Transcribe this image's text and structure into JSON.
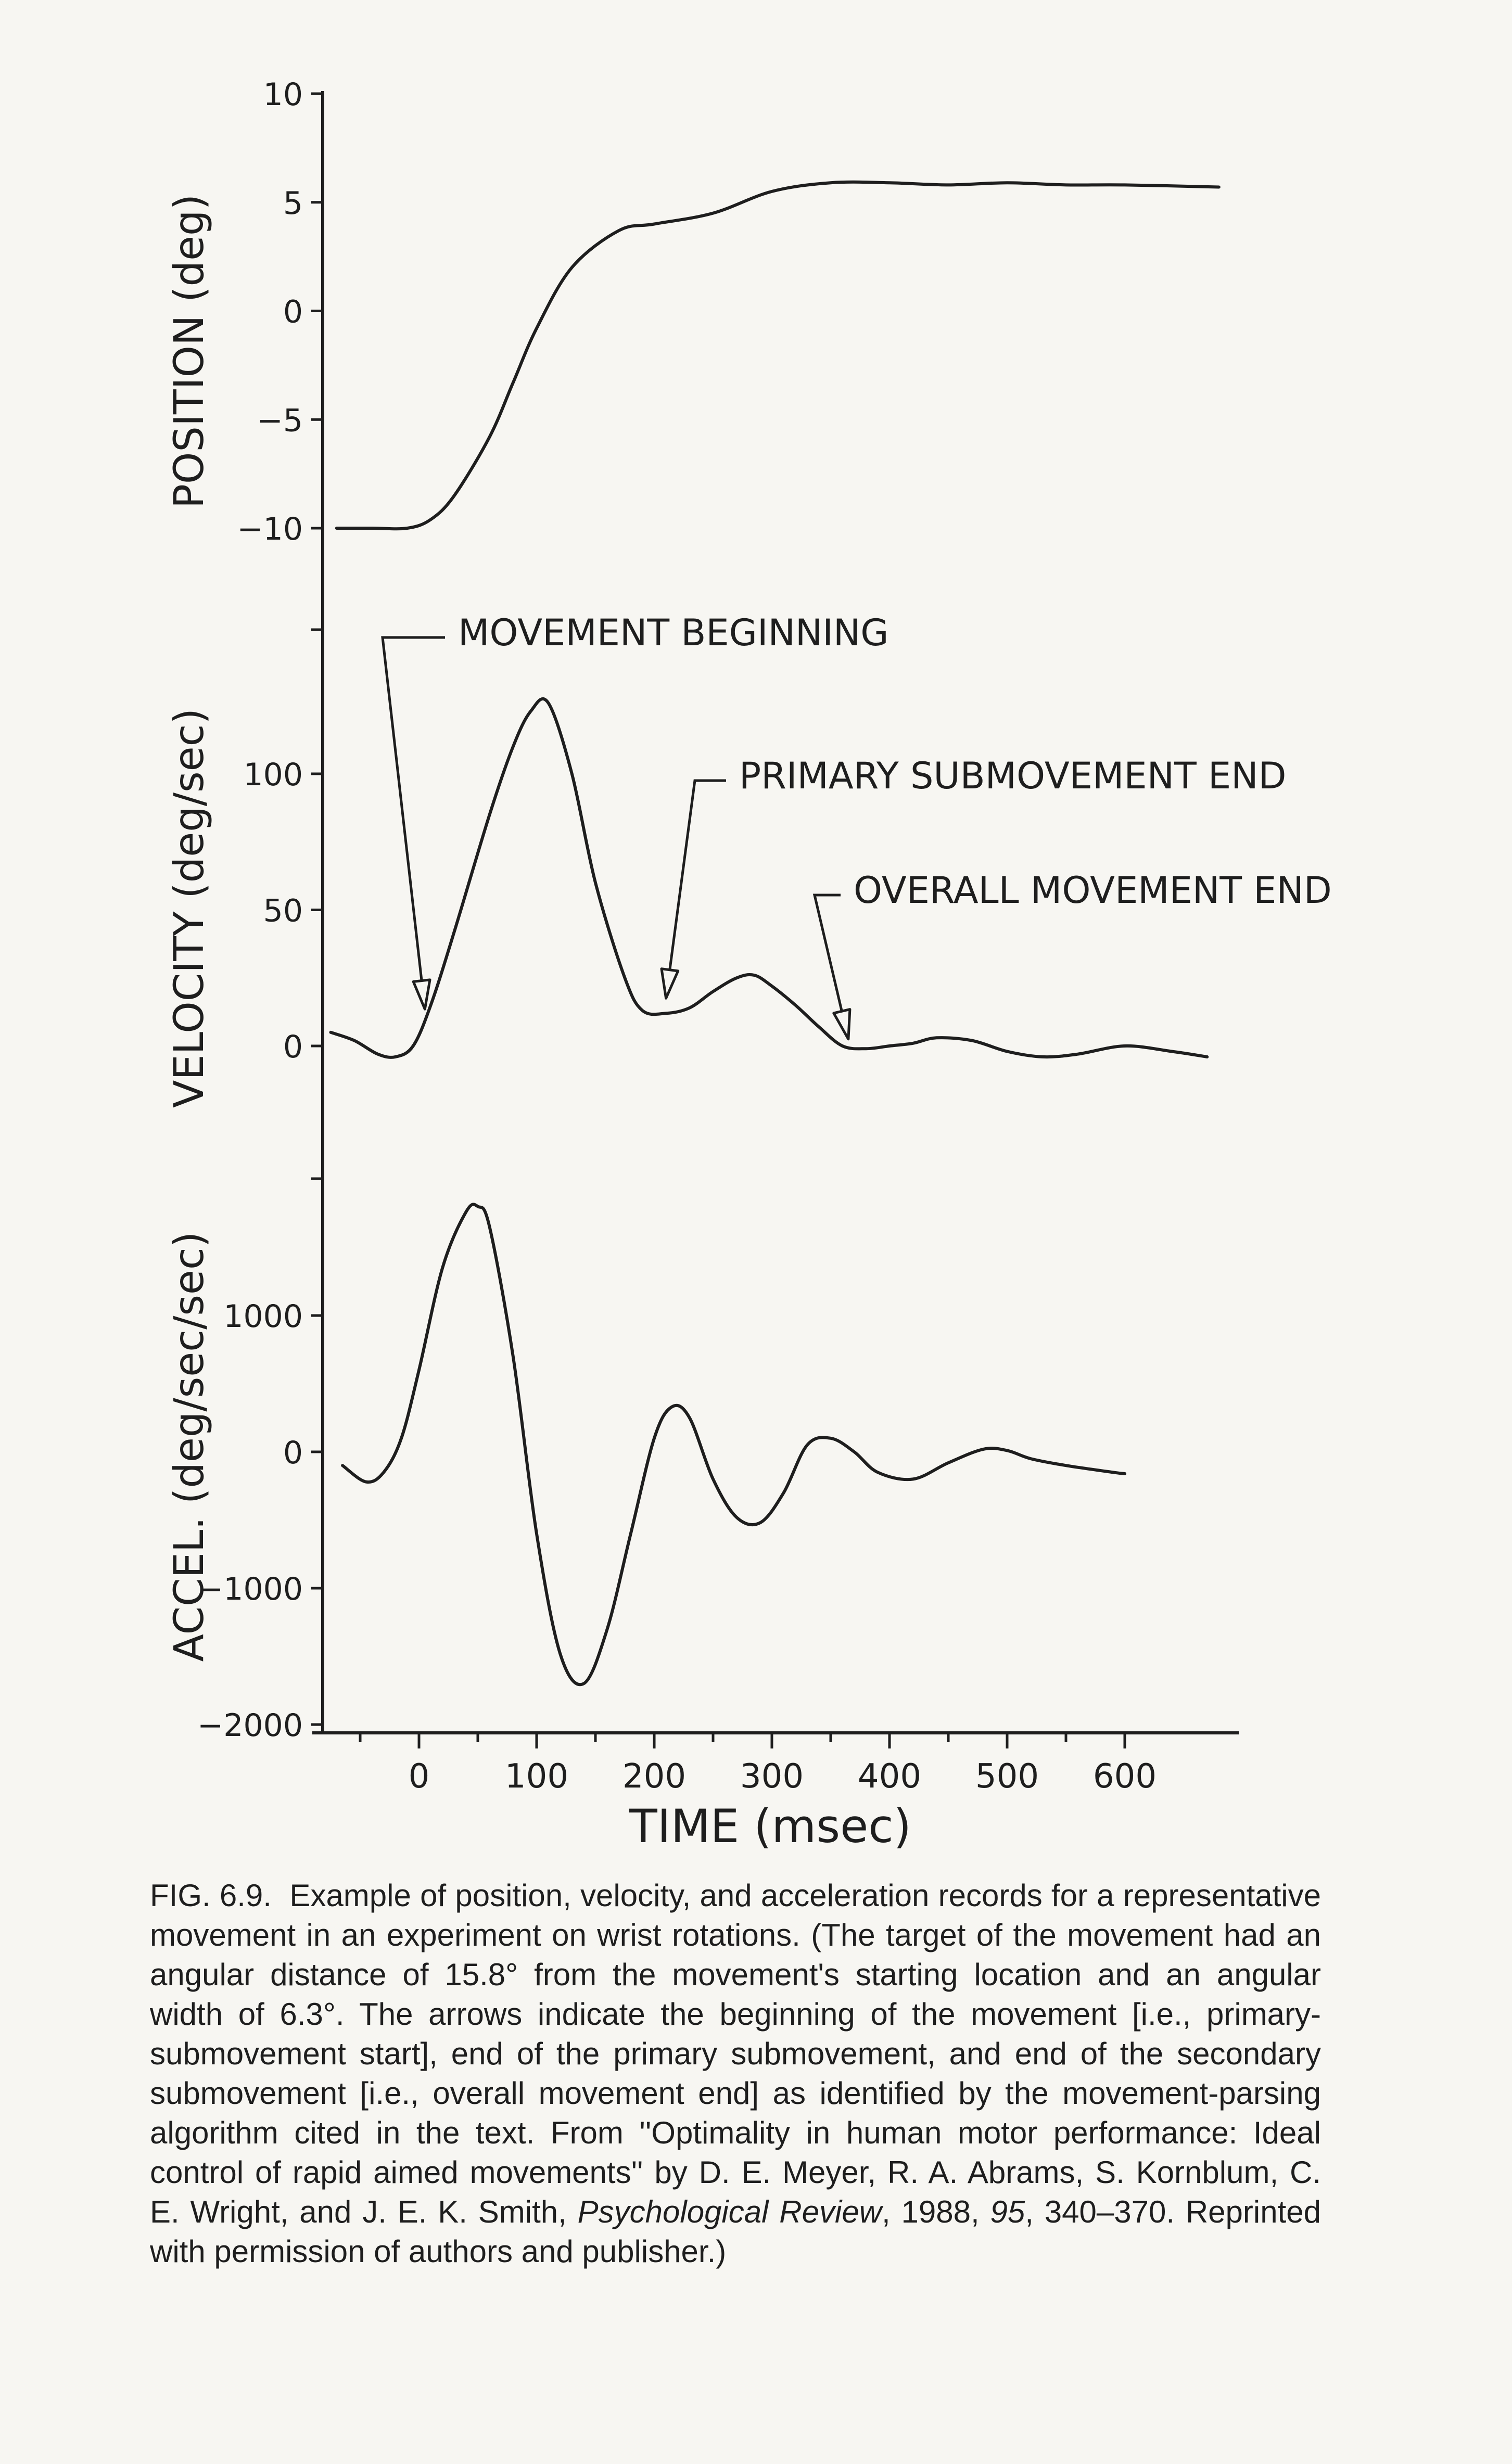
{
  "chart_data": [
    {
      "type": "line",
      "ylabel": "POSITION (deg)",
      "yticks": [
        10,
        5,
        0,
        -5,
        -10
      ],
      "ylim": [
        -10,
        10
      ],
      "xlim": [
        -80,
        680
      ],
      "x": [
        -70,
        -40,
        -10,
        10,
        30,
        60,
        80,
        100,
        130,
        170,
        200,
        250,
        300,
        350,
        400,
        450,
        500,
        550,
        600,
        680
      ],
      "values": [
        -10,
        -10,
        -10,
        -9.6,
        -8.5,
        -5.8,
        -3.3,
        -0.8,
        2,
        3.7,
        4,
        4.5,
        5.5,
        5.9,
        5.9,
        5.8,
        5.9,
        5.8,
        5.8,
        5.7
      ]
    },
    {
      "type": "line",
      "ylabel": "VELOCITY (deg/sec)",
      "yticks": [
        100,
        50,
        0
      ],
      "ylim": [
        -20,
        150
      ],
      "xlim": [
        -80,
        680
      ],
      "x": [
        -75,
        -55,
        -35,
        -20,
        -5,
        10,
        30,
        60,
        80,
        95,
        110,
        130,
        150,
        175,
        190,
        210,
        230,
        250,
        270,
        285,
        300,
        320,
        340,
        360,
        380,
        400,
        420,
        440,
        470,
        500,
        530,
        560,
        600,
        640,
        670
      ],
      "values": [
        5,
        2,
        -3,
        -4,
        0,
        15,
        42,
        85,
        110,
        123,
        126,
        100,
        60,
        25,
        13,
        12,
        14,
        20,
        25,
        26,
        22,
        15,
        7,
        0,
        -1,
        0,
        1,
        3,
        2,
        -2,
        -4,
        -3,
        0,
        -2,
        -4
      ],
      "annotations": [
        {
          "text": "MOVEMENT BEGINNING",
          "x": 5,
          "y": 12
        },
        {
          "text": "PRIMARY SUBMOVEMENT END",
          "x": 210,
          "y": 16
        },
        {
          "text": "OVERALL MOVEMENT END",
          "x": 365,
          "y": 1
        }
      ]
    },
    {
      "type": "line",
      "ylabel": "ACCEL. (deg/sec/sec)",
      "yticks": [
        1000,
        0,
        -1000,
        -2000
      ],
      "ylim": [
        -2000,
        1800
      ],
      "xlim": [
        -80,
        680
      ],
      "xlabel": "TIME (msec)",
      "xticks": [
        0,
        100,
        200,
        300,
        400,
        500,
        600
      ],
      "x": [
        -65,
        -45,
        -30,
        -15,
        0,
        20,
        40,
        50,
        60,
        80,
        100,
        120,
        140,
        160,
        180,
        200,
        215,
        230,
        250,
        270,
        290,
        310,
        330,
        350,
        370,
        390,
        420,
        450,
        480,
        500,
        520,
        550,
        590,
        600
      ],
      "values": [
        -100,
        -220,
        -150,
        100,
        600,
        1350,
        1760,
        1800,
        1650,
        700,
        -600,
        -1480,
        -1700,
        -1300,
        -600,
        100,
        330,
        250,
        -200,
        -480,
        -520,
        -300,
        50,
        100,
        0,
        -150,
        -200,
        -80,
        20,
        10,
        -50,
        -100,
        -150,
        -160
      ]
    }
  ],
  "caption": {
    "fig_label": "FIG. 6.9.",
    "text_1": "Example of position, velocity, and acceleration records for a representative movement in an experiment on wrist rotations. (The target of the movement had an angular distance of 15.8° from the movement's starting location and an angular width of 6.3°. The arrows indicate the beginning of the movement [i.e., primary-submovement start], end of the primary submovement, and end of the secondary submovement [i.e., overall movement end] as identified by the movement-parsing algorithm cited in the text. From ''Optimality in human motor performance: Ideal control of rapid aimed movements'' by D. E. Meyer, R. A. Abrams, S. Kornblum, C. E. Wright, and J. E. K. Smith,",
    "journal": "Psychological Review",
    "text_2": ", 1988,",
    "volume": "95",
    "text_3": ", 340–370. Reprinted with permission of authors and publisher.)"
  }
}
